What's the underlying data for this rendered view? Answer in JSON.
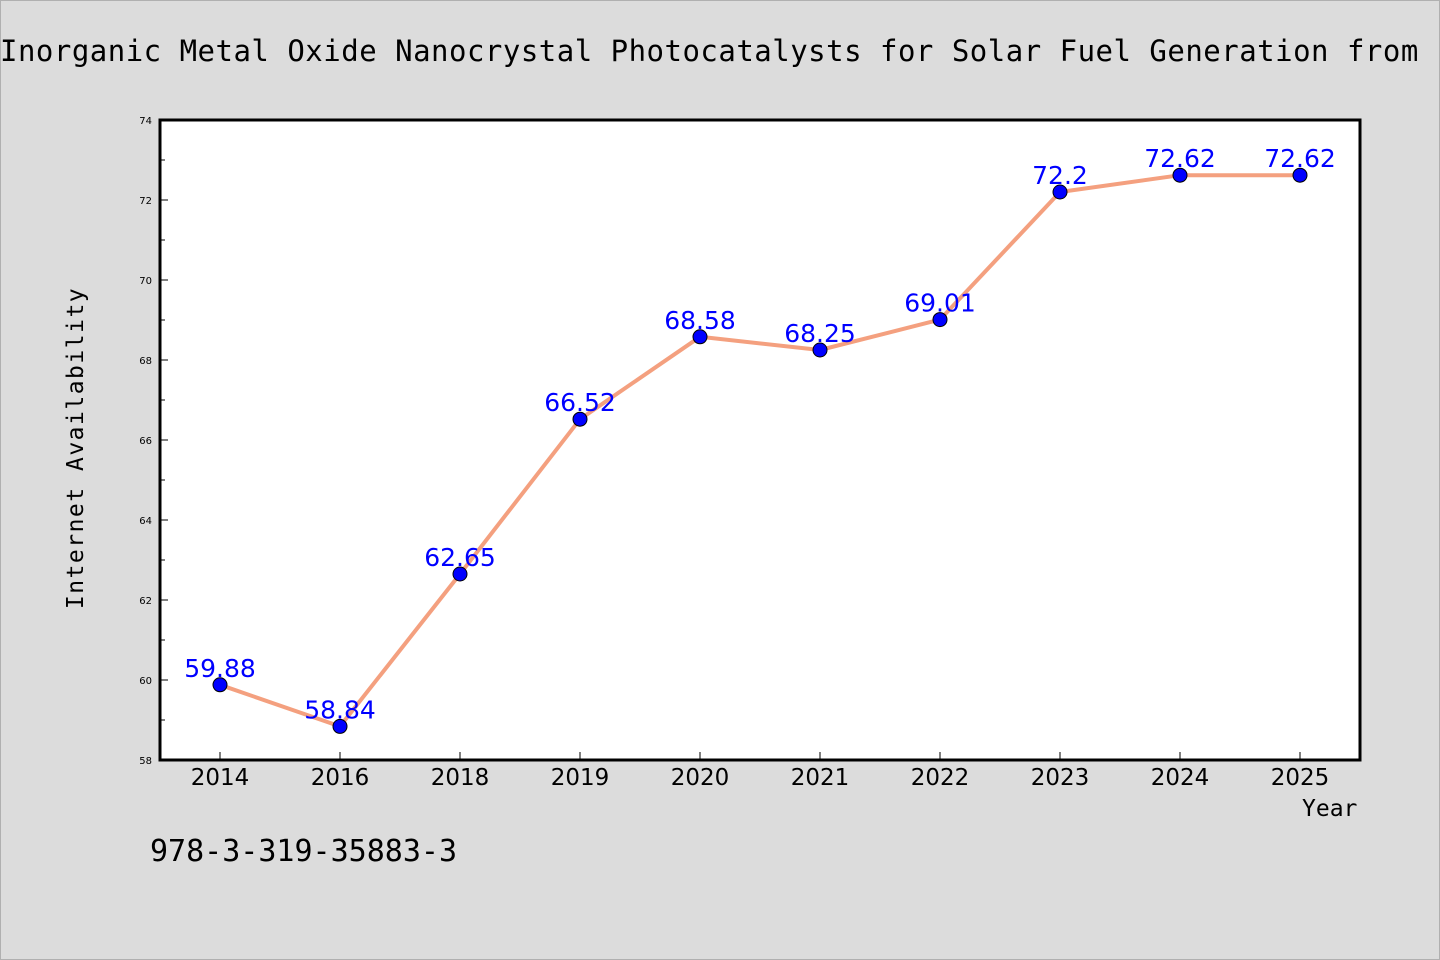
{
  "chart_data": {
    "type": "line",
    "title": "Inorganic Metal Oxide Nanocrystal Photocatalysts for Solar Fuel Generation from",
    "xlabel": "Year",
    "ylabel": "Internet Availability",
    "categories": [
      "2014",
      "2016",
      "2018",
      "2019",
      "2020",
      "2021",
      "2022",
      "2023",
      "2024",
      "2025"
    ],
    "series": [
      {
        "values": [
          59.88,
          58.84,
          62.65,
          66.52,
          68.58,
          68.25,
          69.01,
          72.2,
          72.62,
          72.62
        ],
        "labels": [
          "59.88",
          "58.84",
          "62.65",
          "66.52",
          "68.58",
          "68.25",
          "69.01",
          "72.2",
          "72.62",
          "72.62"
        ],
        "line_color": "#f4a07f",
        "marker_color": "#0000ff"
      }
    ],
    "ylim": [
      58,
      74
    ],
    "yticks": [
      "58",
      "60",
      "62",
      "64",
      "66",
      "68",
      "70",
      "72",
      "74"
    ],
    "grid": false,
    "legend": "none"
  },
  "annotation": {
    "isbn": "978-3-319-35883-3"
  },
  "colors": {
    "background": "#dcdcdc",
    "plot_background": "#ffffff",
    "line": "#f4a07f",
    "marker": "#0000ff",
    "label": "#0000ff"
  }
}
